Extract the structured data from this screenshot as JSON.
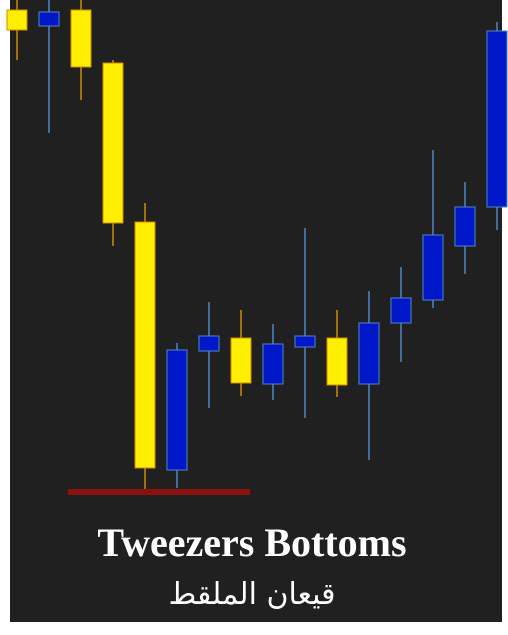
{
  "chart_data": {
    "type": "candlestick",
    "title": "Tweezers Bottoms",
    "subtitle": "قيعان الملقط",
    "open": [
      490,
      474,
      490,
      437,
      278,
      30,
      149,
      162,
      116,
      153,
      162,
      116,
      177,
      200,
      254,
      293
    ],
    "high": [
      500,
      500,
      500,
      440,
      297,
      157,
      198,
      190,
      176,
      272,
      190,
      209,
      233,
      350,
      318,
      478
    ],
    "low": [
      440,
      367,
      400,
      254,
      10,
      12,
      92,
      104,
      100,
      82,
      103,
      40,
      138,
      192,
      226,
      270
    ],
    "close": [
      470,
      488,
      433,
      277,
      32,
      150,
      164,
      117,
      156,
      164,
      115,
      177,
      202,
      265,
      293,
      469
    ],
    "up_color": "#0018c8",
    "down_color": "#ffee00",
    "up_wick_color": "#4f86c6",
    "down_wick_color": "#d08c00",
    "support_level": 8,
    "support_color": "#8b1010",
    "ylim": [
      0,
      500
    ]
  }
}
